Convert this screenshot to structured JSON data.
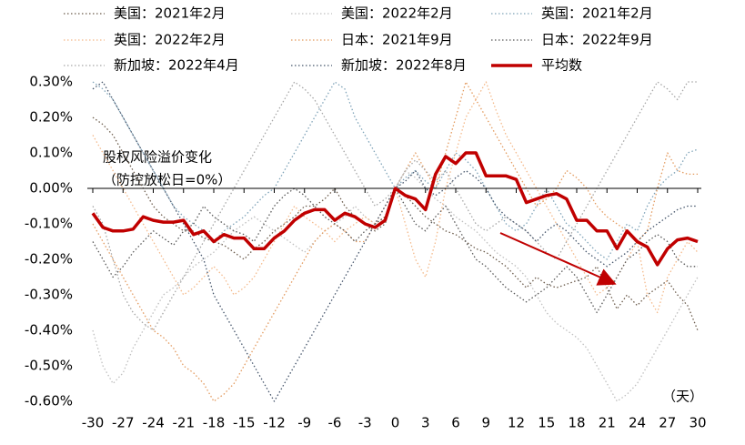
{
  "chart_data": {
    "type": "line",
    "annotations": [
      "股权风险溢价变化",
      "（防控放松日=0%）"
    ],
    "x_unit_label": "（天）",
    "x": [
      -30,
      -29,
      -28,
      -27,
      -26,
      -25,
      -24,
      -23,
      -22,
      -21,
      -20,
      -19,
      -18,
      -17,
      -16,
      -15,
      -14,
      -13,
      -12,
      -11,
      -10,
      -9,
      -8,
      -7,
      -6,
      -5,
      -4,
      -3,
      -2,
      -1,
      0,
      1,
      2,
      3,
      4,
      5,
      6,
      7,
      8,
      9,
      10,
      11,
      12,
      13,
      14,
      15,
      16,
      17,
      18,
      19,
      20,
      21,
      22,
      23,
      24,
      25,
      26,
      27,
      28,
      29,
      30
    ],
    "xlim": [
      -30,
      30
    ],
    "xticks": [
      -30,
      -27,
      -24,
      -21,
      -18,
      -15,
      -12,
      -9,
      -6,
      -3,
      0,
      3,
      6,
      9,
      12,
      15,
      18,
      21,
      24,
      27,
      30
    ],
    "ylim": [
      -0.6,
      0.3
    ],
    "yticks": [
      {
        "value": 0.3,
        "label": "0.30%"
      },
      {
        "value": 0.2,
        "label": "0.20%"
      },
      {
        "value": 0.1,
        "label": "0.10%"
      },
      {
        "value": 0,
        "label": "0.00%"
      },
      {
        "value": -0.1,
        "label": "-0.10%"
      },
      {
        "value": -0.2,
        "label": "-0.20%"
      },
      {
        "value": -0.3,
        "label": "-0.30%"
      },
      {
        "value": -0.4,
        "label": "-0.40%"
      },
      {
        "value": -0.5,
        "label": "-0.50%"
      },
      {
        "value": -0.6,
        "label": "-0.60%"
      }
    ],
    "grid": false,
    "series": [
      {
        "name": "美国：2021年2月",
        "color": "#6b5b4b",
        "line_style": "dotted",
        "values": [
          0.2,
          0.18,
          0.15,
          0.1,
          0.05,
          0.0,
          -0.05,
          -0.08,
          -0.1,
          -0.12,
          -0.12,
          -0.14,
          -0.15,
          -0.16,
          -0.18,
          -0.2,
          -0.17,
          -0.15,
          -0.12,
          -0.1,
          -0.08,
          -0.05,
          -0.05,
          -0.03,
          0.0,
          -0.05,
          -0.08,
          -0.1,
          -0.12,
          -0.1,
          0.0,
          -0.02,
          -0.05,
          -0.08,
          -0.1,
          -0.12,
          -0.13,
          -0.15,
          -0.17,
          -0.18,
          -0.2,
          -0.22,
          -0.25,
          -0.28,
          -0.25,
          -0.27,
          -0.28,
          -0.27,
          -0.26,
          -0.25,
          -0.22,
          -0.28,
          -0.34,
          -0.3,
          -0.33,
          -0.3,
          -0.28,
          -0.26,
          -0.3,
          -0.33,
          -0.4
        ]
      },
      {
        "name": "美国：2022年2月",
        "color": "#bfbfbf",
        "line_style": "dotted",
        "values": [
          -0.4,
          -0.5,
          -0.55,
          -0.52,
          -0.45,
          -0.4,
          -0.35,
          -0.3,
          -0.28,
          -0.25,
          -0.22,
          -0.2,
          -0.18,
          -0.15,
          -0.12,
          -0.1,
          -0.08,
          -0.1,
          -0.12,
          -0.14,
          -0.16,
          -0.18,
          -0.15,
          -0.12,
          -0.1,
          -0.08,
          -0.05,
          -0.08,
          -0.1,
          -0.05,
          0.0,
          0.05,
          0.03,
          0.0,
          -0.03,
          -0.05,
          -0.08,
          -0.1,
          -0.12,
          -0.15,
          -0.18,
          -0.2,
          -0.22,
          -0.25,
          -0.3,
          -0.35,
          -0.38,
          -0.4,
          -0.42,
          -0.45,
          -0.5,
          -0.55,
          -0.6,
          -0.58,
          -0.55,
          -0.5,
          -0.45,
          -0.4,
          -0.35,
          -0.3,
          -0.25
        ]
      },
      {
        "name": "英国：2021年2月",
        "color": "#7fa3b8",
        "line_style": "dotted",
        "values": [
          0.3,
          0.28,
          0.25,
          0.2,
          0.15,
          0.1,
          0.05,
          0.0,
          -0.05,
          -0.08,
          -0.1,
          -0.12,
          -0.15,
          -0.12,
          -0.1,
          -0.08,
          -0.05,
          -0.02,
          0.0,
          0.05,
          0.1,
          0.15,
          0.2,
          0.25,
          0.3,
          0.28,
          0.2,
          0.15,
          0.1,
          0.05,
          0.0,
          0.03,
          0.05,
          0.02,
          0.0,
          0.05,
          0.1,
          0.08,
          0.05,
          0.0,
          -0.05,
          -0.1,
          -0.12,
          -0.1,
          -0.05,
          0.0,
          -0.05,
          -0.1,
          -0.12,
          -0.15,
          -0.18,
          -0.2,
          -0.15,
          -0.1,
          -0.12,
          -0.05,
          0.0,
          0.03,
          0.05,
          0.1,
          0.11
        ]
      },
      {
        "name": "英国：2022年2月",
        "color": "#f4b98a",
        "line_style": "dotted",
        "values": [
          0.15,
          0.1,
          0.05,
          0.0,
          -0.05,
          -0.1,
          -0.15,
          -0.2,
          -0.25,
          -0.3,
          -0.28,
          -0.25,
          -0.22,
          -0.25,
          -0.3,
          -0.28,
          -0.25,
          -0.2,
          -0.15,
          -0.1,
          -0.05,
          -0.08,
          -0.1,
          -0.12,
          -0.15,
          -0.12,
          -0.1,
          -0.08,
          -0.1,
          -0.05,
          0.0,
          -0.1,
          -0.2,
          -0.25,
          -0.15,
          0.0,
          0.1,
          0.2,
          0.25,
          0.3,
          0.22,
          0.15,
          0.1,
          0.05,
          0.0,
          -0.05,
          -0.1,
          -0.15,
          -0.2,
          -0.25,
          -0.3,
          -0.28,
          -0.25,
          -0.2,
          -0.15,
          -0.3,
          -0.35,
          -0.25,
          -0.2,
          -0.15,
          -0.18
        ]
      },
      {
        "name": "日本：2021年9月",
        "color": "#e39a5e",
        "line_style": "dotted",
        "values": [
          -0.1,
          -0.15,
          -0.2,
          -0.25,
          -0.3,
          -0.35,
          -0.4,
          -0.42,
          -0.45,
          -0.5,
          -0.52,
          -0.55,
          -0.6,
          -0.58,
          -0.55,
          -0.5,
          -0.45,
          -0.4,
          -0.35,
          -0.3,
          -0.25,
          -0.2,
          -0.15,
          -0.12,
          -0.1,
          -0.12,
          -0.15,
          -0.15,
          -0.1,
          -0.08,
          0.0,
          0.05,
          0.1,
          0.05,
          0.0,
          0.1,
          0.2,
          0.3,
          0.25,
          0.2,
          0.15,
          0.1,
          0.05,
          0.0,
          -0.05,
          -0.03,
          0.0,
          0.05,
          0.03,
          0.0,
          -0.05,
          -0.08,
          -0.1,
          -0.12,
          -0.15,
          -0.12,
          0.0,
          0.1,
          0.05,
          0.04,
          0.04
        ]
      },
      {
        "name": "日本：2022年9月",
        "color": "#595959",
        "line_style": "dotted",
        "values": [
          -0.15,
          -0.2,
          -0.25,
          -0.22,
          -0.18,
          -0.15,
          -0.12,
          -0.14,
          -0.16,
          -0.12,
          -0.1,
          -0.05,
          -0.08,
          -0.1,
          -0.12,
          -0.13,
          -0.15,
          -0.1,
          -0.05,
          -0.02,
          0.0,
          -0.02,
          -0.05,
          -0.08,
          -0.1,
          -0.12,
          -0.15,
          -0.12,
          -0.1,
          -0.08,
          0.0,
          -0.05,
          -0.1,
          -0.12,
          -0.08,
          -0.05,
          -0.1,
          -0.15,
          -0.2,
          -0.22,
          -0.25,
          -0.28,
          -0.3,
          -0.32,
          -0.3,
          -0.28,
          -0.25,
          -0.22,
          -0.25,
          -0.3,
          -0.35,
          -0.3,
          -0.25,
          -0.2,
          -0.18,
          -0.15,
          -0.13,
          -0.15,
          -0.2,
          -0.22,
          -0.22
        ]
      },
      {
        "name": "新加坡：2022年4月",
        "color": "#a6a6a6",
        "line_style": "dotted",
        "values": [
          -0.05,
          -0.1,
          -0.2,
          -0.3,
          -0.35,
          -0.38,
          -0.4,
          -0.35,
          -0.3,
          -0.25,
          -0.2,
          -0.15,
          -0.1,
          -0.05,
          0.0,
          0.05,
          0.1,
          0.15,
          0.2,
          0.25,
          0.3,
          0.28,
          0.25,
          0.2,
          0.15,
          0.1,
          0.05,
          0.0,
          -0.05,
          -0.03,
          0.0,
          0.05,
          0.08,
          0.05,
          0.02,
          0.05,
          0.0,
          -0.05,
          -0.1,
          -0.12,
          -0.1,
          -0.08,
          -0.1,
          -0.12,
          -0.15,
          -0.18,
          -0.2,
          -0.15,
          -0.1,
          -0.05,
          0.0,
          0.05,
          0.1,
          0.15,
          0.2,
          0.25,
          0.3,
          0.28,
          0.25,
          0.3,
          0.3
        ]
      },
      {
        "name": "新加坡：2022年8月",
        "color": "#44546a",
        "line_style": "dotted",
        "values": [
          0.28,
          0.3,
          0.25,
          0.2,
          0.15,
          0.1,
          0.05,
          0.0,
          -0.05,
          -0.1,
          -0.15,
          -0.2,
          -0.3,
          -0.35,
          -0.4,
          -0.45,
          -0.5,
          -0.55,
          -0.6,
          -0.55,
          -0.5,
          -0.45,
          -0.4,
          -0.35,
          -0.3,
          -0.25,
          -0.2,
          -0.15,
          -0.1,
          -0.05,
          0.0,
          0.02,
          0.05,
          0.0,
          -0.02,
          0.0,
          0.03,
          0.05,
          0.03,
          0.0,
          -0.05,
          -0.08,
          -0.1,
          -0.12,
          -0.15,
          -0.12,
          -0.1,
          -0.12,
          -0.15,
          -0.18,
          -0.2,
          -0.22,
          -0.2,
          -0.18,
          -0.15,
          -0.12,
          -0.1,
          -0.08,
          -0.06,
          -0.05,
          -0.05
        ]
      },
      {
        "name": "平均数",
        "color": "#c00000",
        "line_style": "solid",
        "values": [
          -0.07,
          -0.11,
          -0.12,
          -0.12,
          -0.115,
          -0.08,
          -0.09,
          -0.095,
          -0.095,
          -0.09,
          -0.13,
          -0.12,
          -0.15,
          -0.13,
          -0.14,
          -0.14,
          -0.17,
          -0.17,
          -0.14,
          -0.12,
          -0.09,
          -0.07,
          -0.06,
          -0.06,
          -0.09,
          -0.07,
          -0.08,
          -0.1,
          -0.11,
          -0.09,
          0.0,
          -0.02,
          -0.03,
          -0.06,
          0.04,
          0.09,
          0.07,
          0.1,
          0.1,
          0.035,
          0.035,
          0.035,
          0.025,
          -0.04,
          -0.03,
          -0.02,
          -0.015,
          -0.03,
          -0.09,
          -0.09,
          -0.12,
          -0.12,
          -0.17,
          -0.12,
          -0.15,
          -0.165,
          -0.215,
          -0.17,
          -0.145,
          -0.14,
          -0.15
        ]
      }
    ]
  }
}
